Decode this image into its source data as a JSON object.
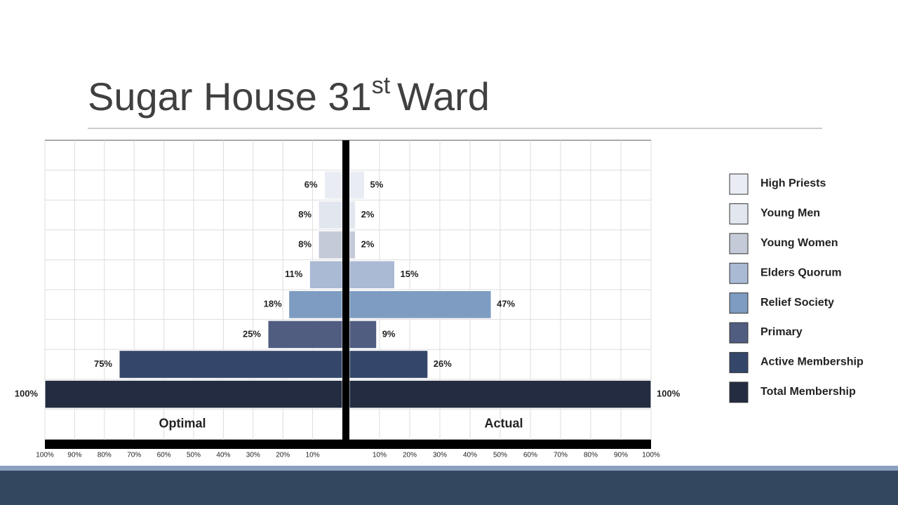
{
  "slide": {
    "title": {
      "main": "Sugar House 31",
      "sup": "st",
      "end": "Ward"
    }
  },
  "chart_data": {
    "type": "butterfly",
    "categories": [
      "High Priests",
      "Young Men",
      "Young Women",
      "Elders Quorum",
      "Relief Society",
      "Primary",
      "Active Membership",
      "Total Membership"
    ],
    "colors": [
      "#e9edf3",
      "#e2e6ee",
      "#c5cad9",
      "#aab9d4",
      "#7e9cc2",
      "#505d80",
      "#34466a",
      "#232c40"
    ],
    "series": [
      {
        "name": "Optimal",
        "values": [
          6,
          8,
          8,
          11,
          18,
          25,
          75,
          100
        ],
        "value_labels": [
          "6%",
          "8%",
          "8%",
          "11%",
          "18%",
          "25%",
          "75%",
          "100%"
        ]
      },
      {
        "name": "Actual",
        "values": [
          5,
          2,
          2,
          15,
          47,
          9,
          26,
          100
        ],
        "value_labels": [
          "5%",
          "2%",
          "2%",
          "15%",
          "47%",
          "9%",
          "26%",
          "100%"
        ]
      }
    ],
    "xlim": [
      0,
      100
    ],
    "xticks": [
      {
        "value": 10,
        "label": "10%"
      },
      {
        "value": 20,
        "label": "20%"
      },
      {
        "value": 30,
        "label": "30%"
      },
      {
        "value": 40,
        "label": "40%"
      },
      {
        "value": 50,
        "label": "50%"
      },
      {
        "value": 60,
        "label": "60%"
      },
      {
        "value": 70,
        "label": "70%"
      },
      {
        "value": 80,
        "label": "80%"
      },
      {
        "value": 90,
        "label": "90%"
      },
      {
        "value": 100,
        "label": "100%"
      }
    ],
    "grid": true
  }
}
